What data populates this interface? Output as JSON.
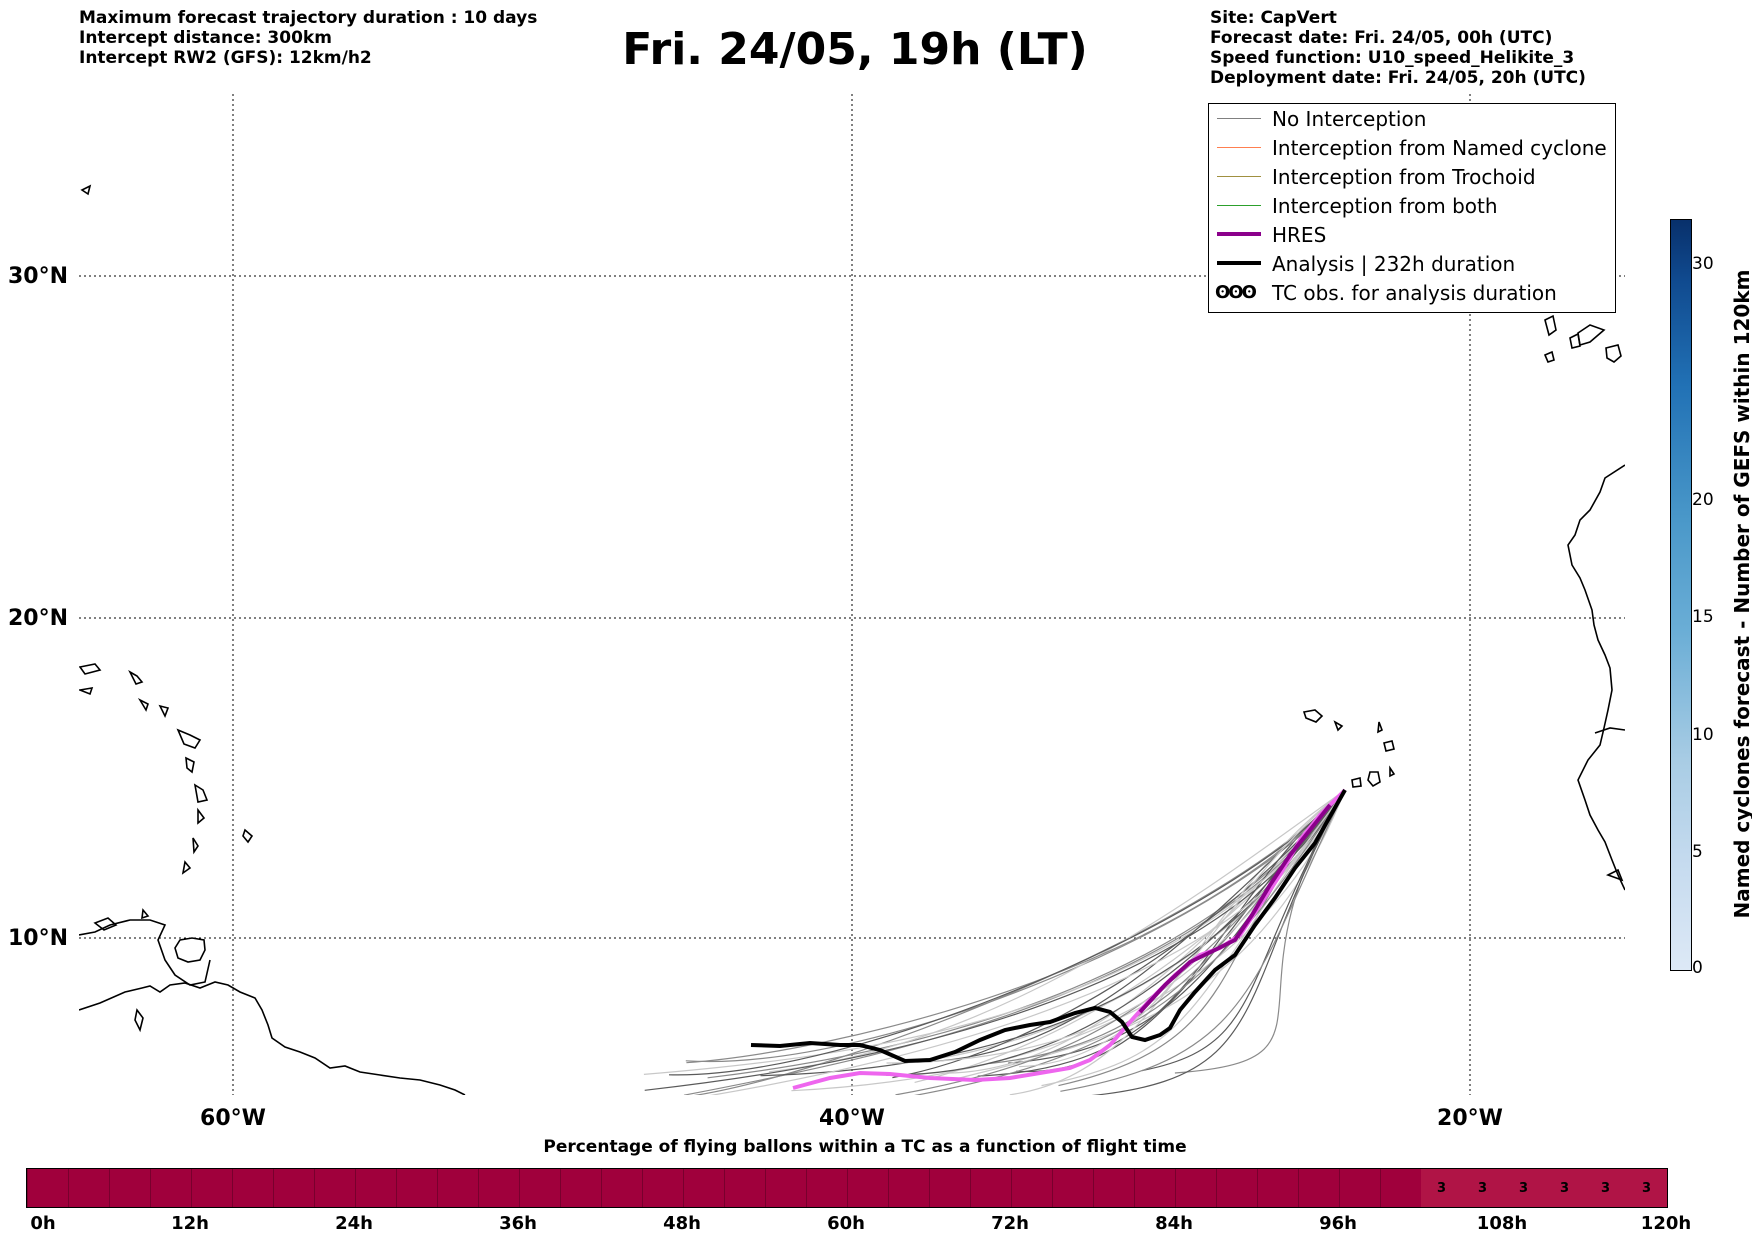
{
  "header": {
    "left_lines": [
      "Maximum forecast trajectory duration : 10 days",
      "Intercept distance: 300km",
      "Intercept RW2 (GFS):  12km/h2"
    ],
    "title": "Fri. 24/05, 19h (LT)",
    "right_lines": [
      "Site: CapVert",
      "Forecast date: Fri. 24/05, 00h (UTC)",
      "Speed function: U10_speed_Helikite_3",
      "Deployment date: Fri. 24/05, 20h (UTC)"
    ]
  },
  "map": {
    "lat_labels": [
      "30°N",
      "20°N",
      "10°N"
    ],
    "lon_labels": [
      "60°W",
      "40°W",
      "20°W"
    ],
    "extent": {
      "lon_min": -65,
      "lon_max": -15,
      "lat_min": 5.5,
      "lat_max": 35
    }
  },
  "legend": {
    "items": [
      {
        "label": "No Interception",
        "color": "#808080"
      },
      {
        "label": "Interception from Named cyclone",
        "color": "#ff7f50"
      },
      {
        "label": "Interception from Trochoid",
        "color": "#a09040"
      },
      {
        "label": "Interception from both",
        "color": "#2ca02c"
      },
      {
        "label": "HRES",
        "color": "#8b008b"
      },
      {
        "label": "Analysis | 232h duration",
        "color": "#000000"
      },
      {
        "label": "TC obs. for analysis duration",
        "symbol": "ʘʘʘ"
      }
    ]
  },
  "colorbar": {
    "label": "Named cyclones forecast - Number of GEFS within 120km",
    "ticks": [
      "0",
      "5",
      "10",
      "15",
      "20",
      "30"
    ],
    "colors": [
      "#dde9f6",
      "#c6dbef",
      "#a8cce4",
      "#6baed6",
      "#4a98c9",
      "#2171b5",
      "#104a8f",
      "#08306b"
    ]
  },
  "percentage_bar": {
    "title": "Percentage of flying ballons within a TC as a function of flight time",
    "hour_labels": [
      "0h",
      "12h",
      "24h",
      "36h",
      "48h",
      "60h",
      "72h",
      "84h",
      "96h",
      "108h",
      "120h"
    ],
    "bar_color": "#a0003c",
    "highlight_color": "#b01446",
    "values_from_102h": [
      "3",
      "3",
      "3",
      "3",
      "3",
      "3"
    ]
  }
}
